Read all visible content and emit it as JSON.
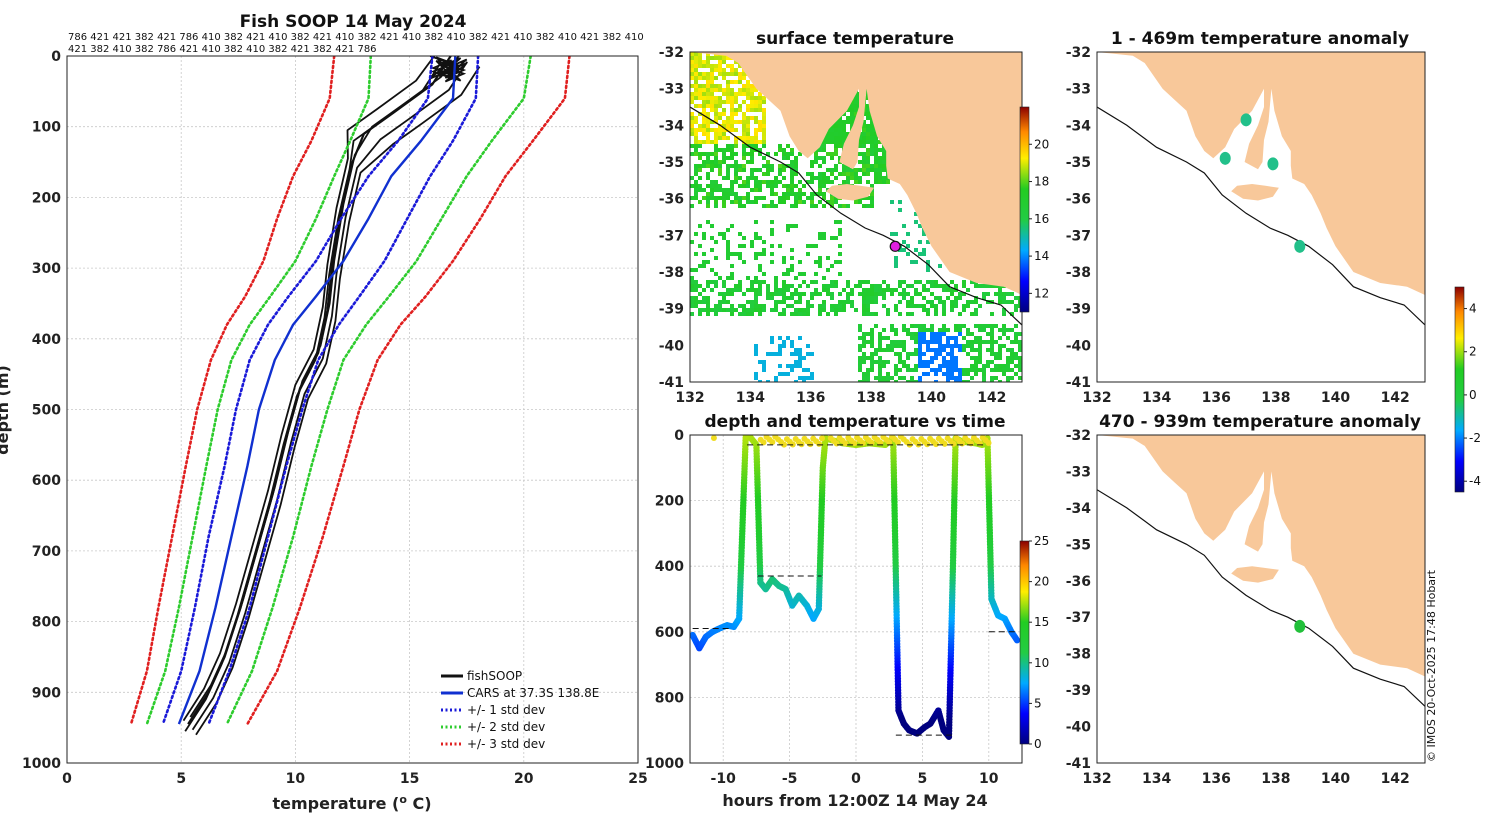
{
  "colors": {
    "land": "#f8c89a",
    "profile": "#111111",
    "cars": "#1030d0",
    "std1": "#1a1ad8",
    "std2": "#2ecc2e",
    "std3": "#e02020",
    "grid": "#c8c8c8"
  },
  "chart_data": [
    {
      "id": "profile",
      "type": "line",
      "title": "Fish SOOP 14 May 2024",
      "xlabel": "temperature (",
      "xlabel_sup": "o",
      "xlabel_unit": " C)",
      "ylabel": "depth (m)",
      "xlim": [
        0,
        25
      ],
      "ylim": [
        1000,
        0
      ],
      "xticks": [
        0,
        5,
        10,
        15,
        20,
        25
      ],
      "yticks": [
        0,
        100,
        200,
        300,
        400,
        500,
        600,
        700,
        800,
        900,
        1000
      ],
      "header_line1": "786 421 421 382 421 786 410 382 421 410 382 421 410 382 421 410 382 410 382 421 410 382 410 421 382 410",
      "header_line2": "421 382 410 382 786 421 410 382 410 382 421 382 421 786",
      "legend": [
        "fishSOOP",
        "CARS at 37.3S 138.8E",
        "+/- 1 std dev",
        "+/- 2 std dev",
        "+/- 3 std dev"
      ],
      "series": [
        {
          "name": "fishSOOP",
          "style": "profile",
          "points": [
            [
              16.8,
              0
            ],
            [
              16.0,
              40
            ],
            [
              14.3,
              80
            ],
            [
              13.0,
              110
            ],
            [
              12.5,
              150
            ],
            [
              12.0,
              220
            ],
            [
              11.6,
              300
            ],
            [
              11.4,
              360
            ],
            [
              11.0,
              420
            ],
            [
              10.2,
              470
            ],
            [
              9.6,
              540
            ],
            [
              9.0,
              620
            ],
            [
              8.3,
              700
            ],
            [
              7.6,
              780
            ],
            [
              6.9,
              850
            ],
            [
              6.2,
              900
            ],
            [
              5.3,
              945
            ]
          ]
        },
        {
          "name": "CARS at 37.3S 138.8E",
          "style": "cars",
          "points": [
            [
              17.0,
              0
            ],
            [
              16.9,
              60
            ],
            [
              15.5,
              120
            ],
            [
              14.2,
              170
            ],
            [
              13.2,
              230
            ],
            [
              12.1,
              290
            ],
            [
              10.9,
              340
            ],
            [
              9.9,
              380
            ],
            [
              9.1,
              430
            ],
            [
              8.4,
              500
            ],
            [
              7.9,
              580
            ],
            [
              7.2,
              680
            ],
            [
              6.5,
              780
            ],
            [
              5.8,
              870
            ],
            [
              4.9,
              945
            ]
          ]
        },
        {
          "name": "+1 std dev",
          "style": "std1",
          "points": [
            [
              18.0,
              0
            ],
            [
              17.9,
              60
            ],
            [
              16.9,
              120
            ],
            [
              15.9,
              170
            ],
            [
              14.9,
              230
            ],
            [
              13.9,
              290
            ],
            [
              12.8,
              340
            ],
            [
              11.9,
              380
            ],
            [
              11.0,
              430
            ],
            [
              10.3,
              500
            ],
            [
              9.6,
              580
            ],
            [
              8.8,
              680
            ],
            [
              8.0,
              780
            ],
            [
              7.1,
              870
            ],
            [
              6.2,
              945
            ]
          ]
        },
        {
          "name": "-1 std dev",
          "style": "std1",
          "points": [
            [
              16.0,
              0
            ],
            [
              15.8,
              60
            ],
            [
              14.5,
              120
            ],
            [
              13.2,
              170
            ],
            [
              12.0,
              230
            ],
            [
              10.9,
              290
            ],
            [
              9.7,
              340
            ],
            [
              8.8,
              380
            ],
            [
              8.0,
              430
            ],
            [
              7.4,
              500
            ],
            [
              6.9,
              580
            ],
            [
              6.2,
              680
            ],
            [
              5.6,
              780
            ],
            [
              5.0,
              870
            ],
            [
              4.2,
              945
            ]
          ]
        },
        {
          "name": "+2 std dev",
          "style": "std2",
          "points": [
            [
              20.3,
              0
            ],
            [
              20.0,
              60
            ],
            [
              18.6,
              120
            ],
            [
              17.5,
              170
            ],
            [
              16.4,
              230
            ],
            [
              15.3,
              290
            ],
            [
              14.1,
              340
            ],
            [
              13.1,
              380
            ],
            [
              12.1,
              430
            ],
            [
              11.4,
              500
            ],
            [
              10.7,
              580
            ],
            [
              9.9,
              680
            ],
            [
              9.0,
              780
            ],
            [
              8.1,
              870
            ],
            [
              7.0,
              945
            ]
          ]
        },
        {
          "name": "-2 std dev",
          "style": "std2",
          "points": [
            [
              13.3,
              0
            ],
            [
              13.2,
              60
            ],
            [
              12.4,
              120
            ],
            [
              11.7,
              170
            ],
            [
              10.9,
              230
            ],
            [
              10.0,
              290
            ],
            [
              8.9,
              340
            ],
            [
              8.0,
              380
            ],
            [
              7.2,
              430
            ],
            [
              6.6,
              500
            ],
            [
              6.1,
              580
            ],
            [
              5.5,
              680
            ],
            [
              4.9,
              780
            ],
            [
              4.3,
              870
            ],
            [
              3.5,
              945
            ]
          ]
        },
        {
          "name": "+3 std dev",
          "style": "std3",
          "points": [
            [
              22.0,
              0
            ],
            [
              21.8,
              60
            ],
            [
              20.4,
              120
            ],
            [
              19.2,
              170
            ],
            [
              18.1,
              230
            ],
            [
              16.9,
              290
            ],
            [
              15.7,
              340
            ],
            [
              14.6,
              380
            ],
            [
              13.6,
              430
            ],
            [
              12.8,
              500
            ],
            [
              12.1,
              580
            ],
            [
              11.2,
              680
            ],
            [
              10.2,
              780
            ],
            [
              9.2,
              870
            ],
            [
              7.9,
              945
            ]
          ]
        },
        {
          "name": "-3 std dev",
          "style": "std3",
          "points": [
            [
              11.7,
              0
            ],
            [
              11.5,
              60
            ],
            [
              10.7,
              120
            ],
            [
              9.9,
              170
            ],
            [
              9.2,
              230
            ],
            [
              8.6,
              290
            ],
            [
              7.8,
              340
            ],
            [
              7.0,
              380
            ],
            [
              6.3,
              430
            ],
            [
              5.7,
              500
            ],
            [
              5.2,
              580
            ],
            [
              4.6,
              680
            ],
            [
              4.0,
              780
            ],
            [
              3.5,
              870
            ],
            [
              2.8,
              945
            ]
          ]
        }
      ]
    },
    {
      "id": "sst_map",
      "type": "heatmap",
      "title": "surface temperature",
      "xlim": [
        132,
        143
      ],
      "ylim": [
        -41,
        -32
      ],
      "xticks": [
        132,
        134,
        136,
        138,
        140,
        142
      ],
      "yticks": [
        -32,
        -33,
        -34,
        -35,
        -36,
        -37,
        -38,
        -39,
        -40,
        -41
      ],
      "colorbar_ticks": [
        12,
        14,
        16,
        18,
        20
      ],
      "colorbar_range": [
        11,
        22
      ],
      "station": {
        "lon": 138.8,
        "lat": -37.3
      }
    },
    {
      "id": "depth_time",
      "type": "scatter",
      "title": "depth and temperature vs time",
      "xlabel": "hours from 12:00Z 14 May 24",
      "xlim": [
        -12.5,
        12.5
      ],
      "ylim": [
        1000,
        0
      ],
      "xticks": [
        -10,
        -5,
        0,
        5,
        10
      ],
      "yticks": [
        0,
        200,
        400,
        600,
        800,
        1000
      ],
      "colorbar_ticks": [
        0,
        5,
        10,
        15,
        20,
        25
      ],
      "colorbar_range": [
        0,
        25
      ],
      "track": [
        [
          -12.3,
          610
        ],
        [
          -11.8,
          650
        ],
        [
          -11.3,
          615
        ],
        [
          -10.8,
          600
        ],
        [
          -10.3,
          590
        ],
        [
          -9.7,
          580
        ],
        [
          -9.2,
          585
        ],
        [
          -8.8,
          560
        ],
        [
          -8.3,
          0
        ],
        [
          -8.0,
          5
        ],
        [
          -7.5,
          30
        ],
        [
          -7.2,
          450
        ],
        [
          -6.8,
          470
        ],
        [
          -6.3,
          440
        ],
        [
          -5.8,
          460
        ],
        [
          -5.3,
          470
        ],
        [
          -4.8,
          520
        ],
        [
          -4.3,
          490
        ],
        [
          -3.7,
          520
        ],
        [
          -3.2,
          560
        ],
        [
          -2.8,
          530
        ],
        [
          -2.5,
          100
        ],
        [
          -2.3,
          10
        ],
        [
          -1,
          25
        ],
        [
          0,
          30
        ],
        [
          1,
          25
        ],
        [
          2.2,
          30
        ],
        [
          2.8,
          10
        ],
        [
          3.2,
          840
        ],
        [
          3.6,
          880
        ],
        [
          4.0,
          900
        ],
        [
          4.6,
          910
        ],
        [
          5.2,
          890
        ],
        [
          5.6,
          880
        ],
        [
          6.2,
          840
        ],
        [
          6.6,
          900
        ],
        [
          7.0,
          920
        ],
        [
          7.3,
          400
        ],
        [
          7.5,
          10
        ],
        [
          8.0,
          20
        ],
        [
          9.0,
          25
        ],
        [
          9.5,
          30
        ],
        [
          9.9,
          10
        ],
        [
          10.2,
          500
        ],
        [
          10.7,
          550
        ],
        [
          11.2,
          560
        ],
        [
          11.7,
          600
        ],
        [
          12.2,
          630
        ]
      ],
      "dashes": [
        [
          -12.3,
          -9.5,
          590
        ],
        [
          -7.4,
          -2.6,
          430
        ],
        [
          3.0,
          7.3,
          915
        ],
        [
          10.0,
          12.2,
          600
        ]
      ]
    },
    {
      "id": "anom_1_469",
      "type": "heatmap",
      "title": "1 - 469m temperature anomaly",
      "xlim": [
        132,
        143
      ],
      "ylim": [
        -41,
        -32
      ],
      "xticks": [
        132,
        134,
        136,
        138,
        140,
        142
      ],
      "yticks": [
        -32,
        -33,
        -34,
        -35,
        -36,
        -37,
        -38,
        -39,
        -40,
        -41
      ],
      "colorbar_ticks": [
        -4,
        -2,
        0,
        2,
        4
      ],
      "colorbar_range": [
        -4.5,
        5.0
      ],
      "blobs": [
        {
          "lon": 137.0,
          "lat": -33.85
        },
        {
          "lon": 136.3,
          "lat": -34.9
        },
        {
          "lon": 137.9,
          "lat": -35.05
        },
        {
          "lon": 138.8,
          "lat": -37.3
        }
      ]
    },
    {
      "id": "anom_470_939",
      "type": "heatmap",
      "title": "470 - 939m temperature anomaly",
      "xlim": [
        132,
        143
      ],
      "ylim": [
        -41,
        -32
      ],
      "xticks": [
        132,
        134,
        136,
        138,
        140,
        142
      ],
      "yticks": [
        -32,
        -33,
        -34,
        -35,
        -36,
        -37,
        -38,
        -39,
        -40,
        -41
      ],
      "blobs": [
        {
          "lon": 138.8,
          "lat": -37.25
        }
      ]
    }
  ],
  "copyright": "© IMOS 20-Oct-2025 17:48 Hobart"
}
